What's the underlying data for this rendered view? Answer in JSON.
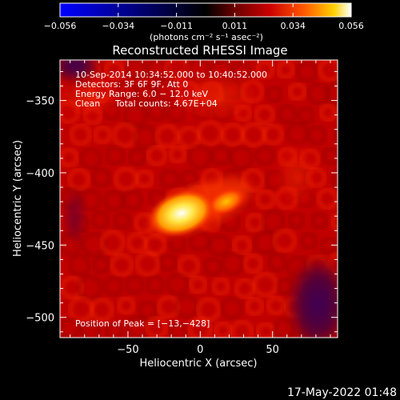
{
  "colorbar": {
    "ticks": [
      "−0.056",
      "−0.034",
      "−0.011",
      "0.011",
      "0.034",
      "0.056"
    ],
    "units": "(photons cm⁻² s⁻¹ asec⁻²)",
    "stops": [
      "#0000ff",
      "#000000",
      "#6a0000",
      "#cc0000",
      "#ff5a00",
      "#ffd000",
      "#ffffff"
    ]
  },
  "chart_data": {
    "type": "heatmap",
    "title": "Reconstructed RHESSI Image",
    "xlabel": "Heliocentric X (arcsec)",
    "ylabel": "Heliocentric Y (arcsec)",
    "xlim": [
      -97,
      95
    ],
    "ylim": [
      -514,
      -322
    ],
    "x_ticks": [
      -50,
      0,
      50
    ],
    "y_ticks": [
      -350,
      -400,
      -450,
      -500
    ],
    "x_tick_labels": [
      "−50",
      "0",
      "50"
    ],
    "y_tick_labels": [
      "−350",
      "−400",
      "−450",
      "−500"
    ],
    "colorbar_range": [
      -0.056,
      0.056
    ],
    "peak": {
      "x": -13,
      "y": -428,
      "value": 0.056
    },
    "secondary_source": {
      "x": 18,
      "y": -420
    },
    "annotations": {
      "time": "10-Sep-2014 10:34:52.000 to 10:40:52.000",
      "detectors": "Detectors: 3F 6F 9F, Att 0",
      "energy": "Energy Range: 6.0 − 12.0 keV",
      "method": "Clean",
      "counts": "Total counts: 4.67E+04",
      "peak_label": "Position of Peak = [−13,−428]"
    }
  },
  "footer": {
    "date": "17-May-2022 01:48"
  }
}
